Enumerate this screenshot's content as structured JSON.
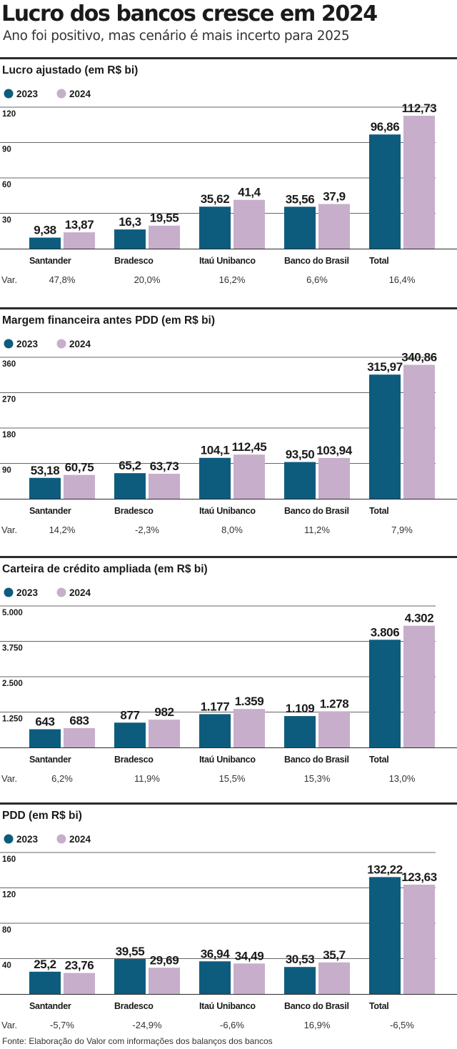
{
  "title": "Lucro dos bancos cresce em 2024",
  "subtitle": "Ano foi positivo, mas cenário é mais incerto para 2025",
  "footer": "Fonte: Elaboração do Valor com informações dos balanços dos bancos",
  "colors": {
    "y2023": "#0d5c7e",
    "y2024": "#c7aecb",
    "rule": "#2b2b2b",
    "grid": "#666666",
    "text": "#1a1a1a"
  },
  "chart_data": [
    {
      "type": "bar",
      "title": "Lucro ajustado (em R$ bi)",
      "categories": [
        "Santander",
        "Bradesco",
        "Itaú Unibanco",
        "Banco do Brasil",
        "Total"
      ],
      "series": [
        {
          "name": "2023",
          "values": [
            9.38,
            16.3,
            35.62,
            35.56,
            96.86
          ],
          "labels": [
            "9,38",
            "16,3",
            "35,62",
            "35,56",
            "96,86"
          ]
        },
        {
          "name": "2024",
          "values": [
            13.87,
            19.55,
            41.4,
            37.9,
            112.73
          ],
          "labels": [
            "13,87",
            "19,55",
            "41,4",
            "37,9",
            "112,73"
          ]
        }
      ],
      "yticks": [
        30,
        60,
        90,
        120
      ],
      "ytick_labels": [
        "30",
        "60",
        "90",
        "120"
      ],
      "ylim": [
        0,
        120
      ],
      "var_label": "Var.",
      "var": [
        "47,8%",
        "20,0%",
        "16,2%",
        "6,6%",
        "16,4%"
      ]
    },
    {
      "type": "bar",
      "title": "Margem financeira antes PDD (em R$ bi)",
      "categories": [
        "Santander",
        "Bradesco",
        "Itaú Unibanco",
        "Banco do Brasil",
        "Total"
      ],
      "series": [
        {
          "name": "2023",
          "values": [
            53.18,
            65.2,
            104.1,
            93.5,
            315.97
          ],
          "labels": [
            "53,18",
            "65,2",
            "104,1",
            "93,50",
            "315,97"
          ]
        },
        {
          "name": "2024",
          "values": [
            60.75,
            63.73,
            112.45,
            103.94,
            340.86
          ],
          "labels": [
            "60,75",
            "63,73",
            "112,45",
            "103,94",
            "340,86"
          ]
        }
      ],
      "yticks": [
        90,
        180,
        270,
        360
      ],
      "ytick_labels": [
        "90",
        "180",
        "270",
        "360"
      ],
      "ylim": [
        0,
        360
      ],
      "var_label": "Var.",
      "var": [
        "14,2%",
        "-2,3%",
        "8,0%",
        "11,2%",
        "7,9%"
      ]
    },
    {
      "type": "bar",
      "title": "Carteira de crédito ampliada (em R$ bi)",
      "categories": [
        "Santander",
        "Bradesco",
        "Itaú Unibanco",
        "Banco do Brasil",
        "Total"
      ],
      "series": [
        {
          "name": "2023",
          "values": [
            643,
            877,
            1177,
            1109,
            3806
          ],
          "labels": [
            "643",
            "877",
            "1.177",
            "1.109",
            "3.806"
          ]
        },
        {
          "name": "2024",
          "values": [
            683,
            982,
            1359,
            1278,
            4302
          ],
          "labels": [
            "683",
            "982",
            "1.359",
            "1.278",
            "4.302"
          ]
        }
      ],
      "yticks": [
        1250,
        2500,
        3750,
        5000
      ],
      "ytick_labels": [
        "1.250",
        "2.500",
        "3.750",
        "5.000"
      ],
      "ylim": [
        0,
        5000
      ],
      "var_label": "Var.",
      "var": [
        "6,2%",
        "11,9%",
        "15,5%",
        "15,3%",
        "13,0%"
      ]
    },
    {
      "type": "bar",
      "title": "PDD (em R$ bi)",
      "categories": [
        "Santander",
        "Bradesco",
        "Itaú Unibanco",
        "Banco do Brasil",
        "Total"
      ],
      "series": [
        {
          "name": "2023",
          "values": [
            25.2,
            39.55,
            36.94,
            30.53,
            132.22
          ],
          "labels": [
            "25,2",
            "39,55",
            "36,94",
            "30,53",
            "132,22"
          ]
        },
        {
          "name": "2024",
          "values": [
            23.76,
            29.69,
            34.49,
            35.7,
            123.63
          ],
          "labels": [
            "23,76",
            "29,69",
            "34,49",
            "35,7",
            "123,63"
          ]
        }
      ],
      "yticks": [
        40,
        80,
        120,
        160
      ],
      "ytick_labels": [
        "40",
        "80",
        "120",
        "160"
      ],
      "ylim": [
        0,
        160
      ],
      "var_label": "Var.",
      "var": [
        "-5,7%",
        "-24,9%",
        "-6,6%",
        "16,9%",
        "-6,5%"
      ]
    }
  ]
}
